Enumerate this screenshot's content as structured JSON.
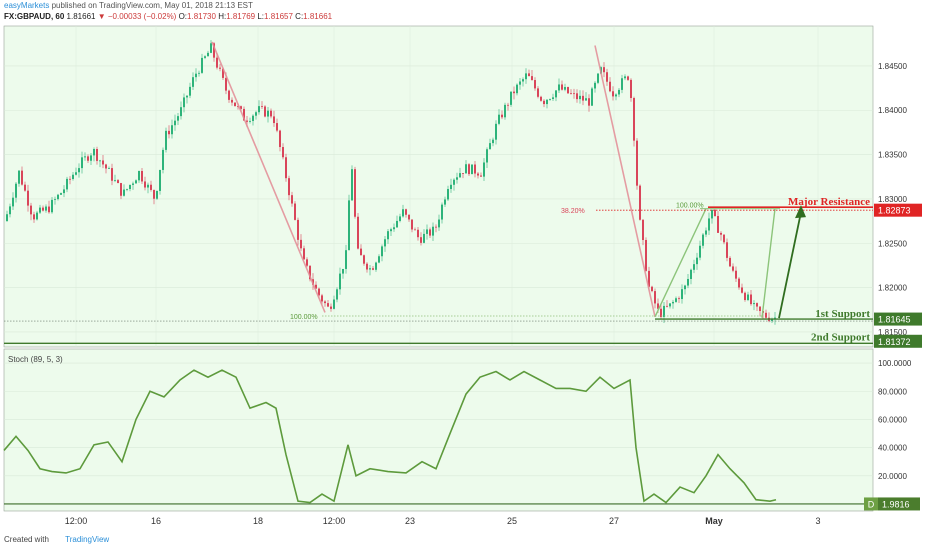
{
  "header": {
    "publisher": "easyMarkets",
    "published_text": "published on TradingView.com, May 01, 2018 21:13 EST"
  },
  "ohlc": {
    "symbol": "FX:GBPAUD, 60",
    "last": "1.81661",
    "change": "▼ −0.00033 (−0.02%)",
    "o_label": "O:",
    "o": "1.81730",
    "h_label": "H:",
    "h": "1.81769",
    "l_label": "L:",
    "l": "1.81657",
    "c_label": "C:",
    "c": "1.81661"
  },
  "footer": {
    "created_with": "Created with",
    "brand": "TradingView"
  },
  "colors": {
    "up": "#2db37a",
    "down": "#d9455a",
    "bg": "#edfbec",
    "stoch": "#5d9a3c",
    "resistance": "#e02424",
    "support": "#3f7a2c"
  },
  "chart_data": [
    {
      "type": "candlestick",
      "y_ticks": [
        "1.84500",
        "1.84000",
        "1.83500",
        "1.83000",
        "1.82500",
        "1.82000",
        "1.81500"
      ],
      "ylim": [
        1.8133,
        1.8495
      ],
      "x_ticks": [
        "12:00",
        "16",
        "18",
        "12:00",
        "23",
        "25",
        "27",
        "May",
        "3"
      ],
      "price_path": [
        [
          0,
          1.8275
        ],
        [
          14,
          1.833
        ],
        [
          28,
          1.828
        ],
        [
          44,
          1.829
        ],
        [
          58,
          1.831
        ],
        [
          72,
          1.8335
        ],
        [
          88,
          1.8355
        ],
        [
          104,
          1.833
        ],
        [
          118,
          1.8305
        ],
        [
          134,
          1.833
        ],
        [
          150,
          1.83
        ],
        [
          160,
          1.837
        ],
        [
          176,
          1.84
        ],
        [
          190,
          1.844
        ],
        [
          206,
          1.847
        ],
        [
          222,
          1.842
        ],
        [
          240,
          1.839
        ],
        [
          254,
          1.84
        ],
        [
          268,
          1.8395
        ],
        [
          282,
          1.832
        ],
        [
          298,
          1.823
        ],
        [
          312,
          1.8195
        ],
        [
          324,
          1.8175
        ],
        [
          334,
          1.821
        ],
        [
          342,
          1.824
        ],
        [
          346,
          1.8355
        ],
        [
          352,
          1.824
        ],
        [
          366,
          1.822
        ],
        [
          382,
          1.826
        ],
        [
          398,
          1.8285
        ],
        [
          414,
          1.8255
        ],
        [
          430,
          1.8265
        ],
        [
          444,
          1.832
        ],
        [
          460,
          1.8335
        ],
        [
          476,
          1.833
        ],
        [
          492,
          1.8385
        ],
        [
          508,
          1.842
        ],
        [
          522,
          1.844
        ],
        [
          538,
          1.841
        ],
        [
          554,
          1.8425
        ],
        [
          570,
          1.8415
        ],
        [
          584,
          1.841
        ],
        [
          596,
          1.8445
        ],
        [
          608,
          1.842
        ],
        [
          624,
          1.844
        ],
        [
          628,
          1.839
        ],
        [
          634,
          1.828
        ],
        [
          644,
          1.82
        ],
        [
          654,
          1.817
        ],
        [
          666,
          1.818
        ],
        [
          680,
          1.82
        ],
        [
          694,
          1.8245
        ],
        [
          706,
          1.8285
        ],
        [
          716,
          1.826
        ],
        [
          726,
          1.822
        ],
        [
          738,
          1.8195
        ],
        [
          750,
          1.8175
        ],
        [
          760,
          1.8168
        ],
        [
          770,
          1.8166
        ]
      ],
      "fib_high_label": "100.00%",
      "fib_low_label": "100.00%",
      "fib_382_label": "38.20%",
      "levels": [
        {
          "name": "Major Resistance",
          "value": "1.82873"
        },
        {
          "name": "1st Support",
          "value": "1.81645"
        },
        {
          "name": "2nd Support",
          "value": "1.81372"
        }
      ]
    },
    {
      "type": "line",
      "title": "Stoch (89, 5, 3)",
      "y_ticks": [
        "100.0000",
        "80.0000",
        "60.0000",
        "40.0000",
        "20.0000"
      ],
      "ylim": [
        -5,
        110
      ],
      "value_label": "1.9816",
      "marker_label": "D",
      "series": [
        {
          "values": [
            [
              0,
              38
            ],
            [
              12,
              48
            ],
            [
              24,
              38
            ],
            [
              36,
              25
            ],
            [
              48,
              23
            ],
            [
              62,
              22
            ],
            [
              76,
              25
            ],
            [
              90,
              42
            ],
            [
              104,
              44
            ],
            [
              118,
              30
            ],
            [
              132,
              60
            ],
            [
              146,
              80
            ],
            [
              160,
              76
            ],
            [
              176,
              88
            ],
            [
              190,
              95
            ],
            [
              204,
              90
            ],
            [
              218,
              95
            ],
            [
              232,
              90
            ],
            [
              246,
              68
            ],
            [
              262,
              72
            ],
            [
              272,
              68
            ],
            [
              282,
              35
            ],
            [
              294,
              2
            ],
            [
              306,
              1
            ],
            [
              318,
              7
            ],
            [
              330,
              2
            ],
            [
              344,
              42
            ],
            [
              352,
              20
            ],
            [
              366,
              25
            ],
            [
              384,
              23
            ],
            [
              402,
              22
            ],
            [
              418,
              30
            ],
            [
              432,
              25
            ],
            [
              446,
              50
            ],
            [
              462,
              78
            ],
            [
              476,
              90
            ],
            [
              492,
              94
            ],
            [
              506,
              88
            ],
            [
              520,
              94
            ],
            [
              536,
              88
            ],
            [
              552,
              82
            ],
            [
              566,
              82
            ],
            [
              582,
              80
            ],
            [
              596,
              90
            ],
            [
              610,
              82
            ],
            [
              626,
              88
            ],
            [
              632,
              40
            ],
            [
              640,
              2
            ],
            [
              650,
              7
            ],
            [
              662,
              1
            ],
            [
              676,
              12
            ],
            [
              690,
              8
            ],
            [
              702,
              20
            ],
            [
              714,
              35
            ],
            [
              726,
              25
            ],
            [
              740,
              15
            ],
            [
              752,
              3
            ],
            [
              766,
              2
            ],
            [
              772,
              3
            ]
          ]
        }
      ]
    }
  ]
}
